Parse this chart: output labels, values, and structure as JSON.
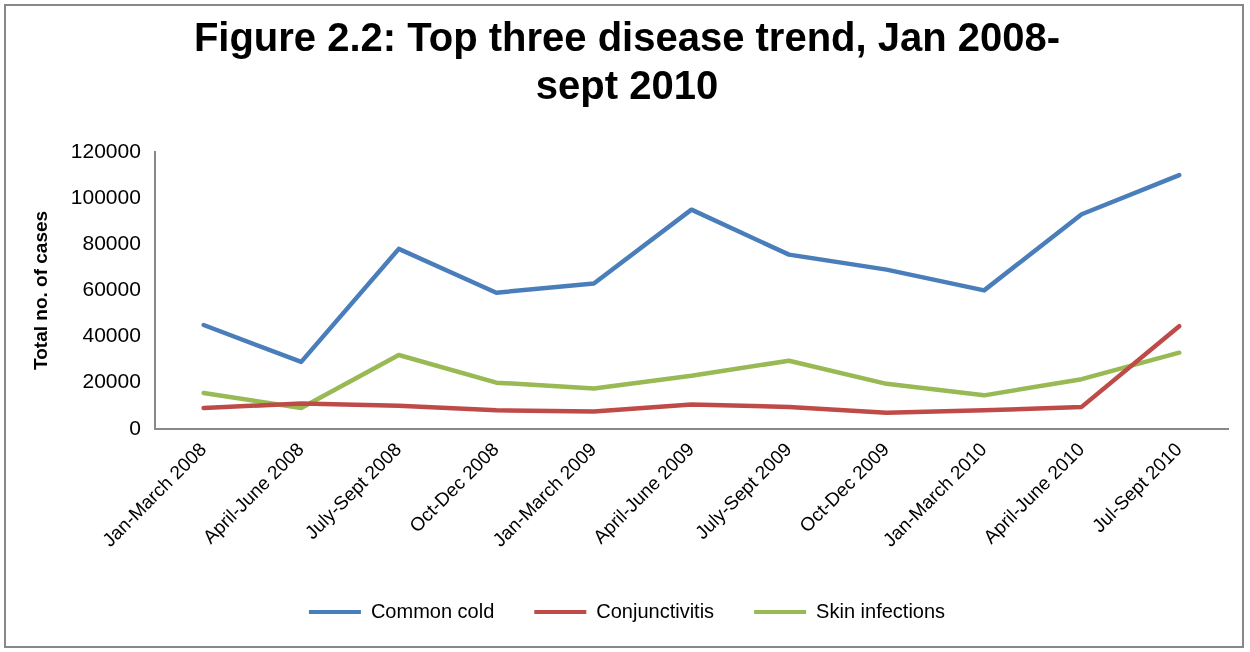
{
  "chart_data": {
    "type": "line",
    "title": [
      "Figure 2.2: Top three disease trend, Jan 2008-",
      "sept 2010"
    ],
    "ylabel": "Total no. of cases",
    "categories": [
      "Jan-March 2008",
      "April-June 2008",
      "July-Sept 2008",
      "Oct-Dec 2008",
      "Jan-March 2009",
      "April-June 2009",
      "July-Sept 2009",
      "Oct-Dec 2009",
      "Jan-March 2010",
      "April-June 2010",
      "Jul-Sept 2010"
    ],
    "series": [
      {
        "name": "Common cold",
        "color": "#4a7ebb",
        "values": [
          45000,
          29000,
          78000,
          59000,
          63000,
          95000,
          75500,
          69000,
          60000,
          93000,
          110000
        ]
      },
      {
        "name": "Conjunctivitis",
        "color": "#be4b48",
        "values": [
          9000,
          11000,
          10000,
          8000,
          7500,
          10500,
          9500,
          7000,
          8000,
          9500,
          44500
        ]
      },
      {
        "name": "Skin infections",
        "color": "#98b954",
        "values": [
          15500,
          9000,
          32000,
          20000,
          17500,
          23000,
          29500,
          19500,
          14500,
          21500,
          33000
        ]
      }
    ],
    "ylim": [
      0,
      120000
    ],
    "yticks": [
      0,
      20000,
      40000,
      60000,
      80000,
      100000,
      120000
    ],
    "grid": false,
    "legend": "bottom",
    "marker": "none",
    "line_style": "solid"
  }
}
